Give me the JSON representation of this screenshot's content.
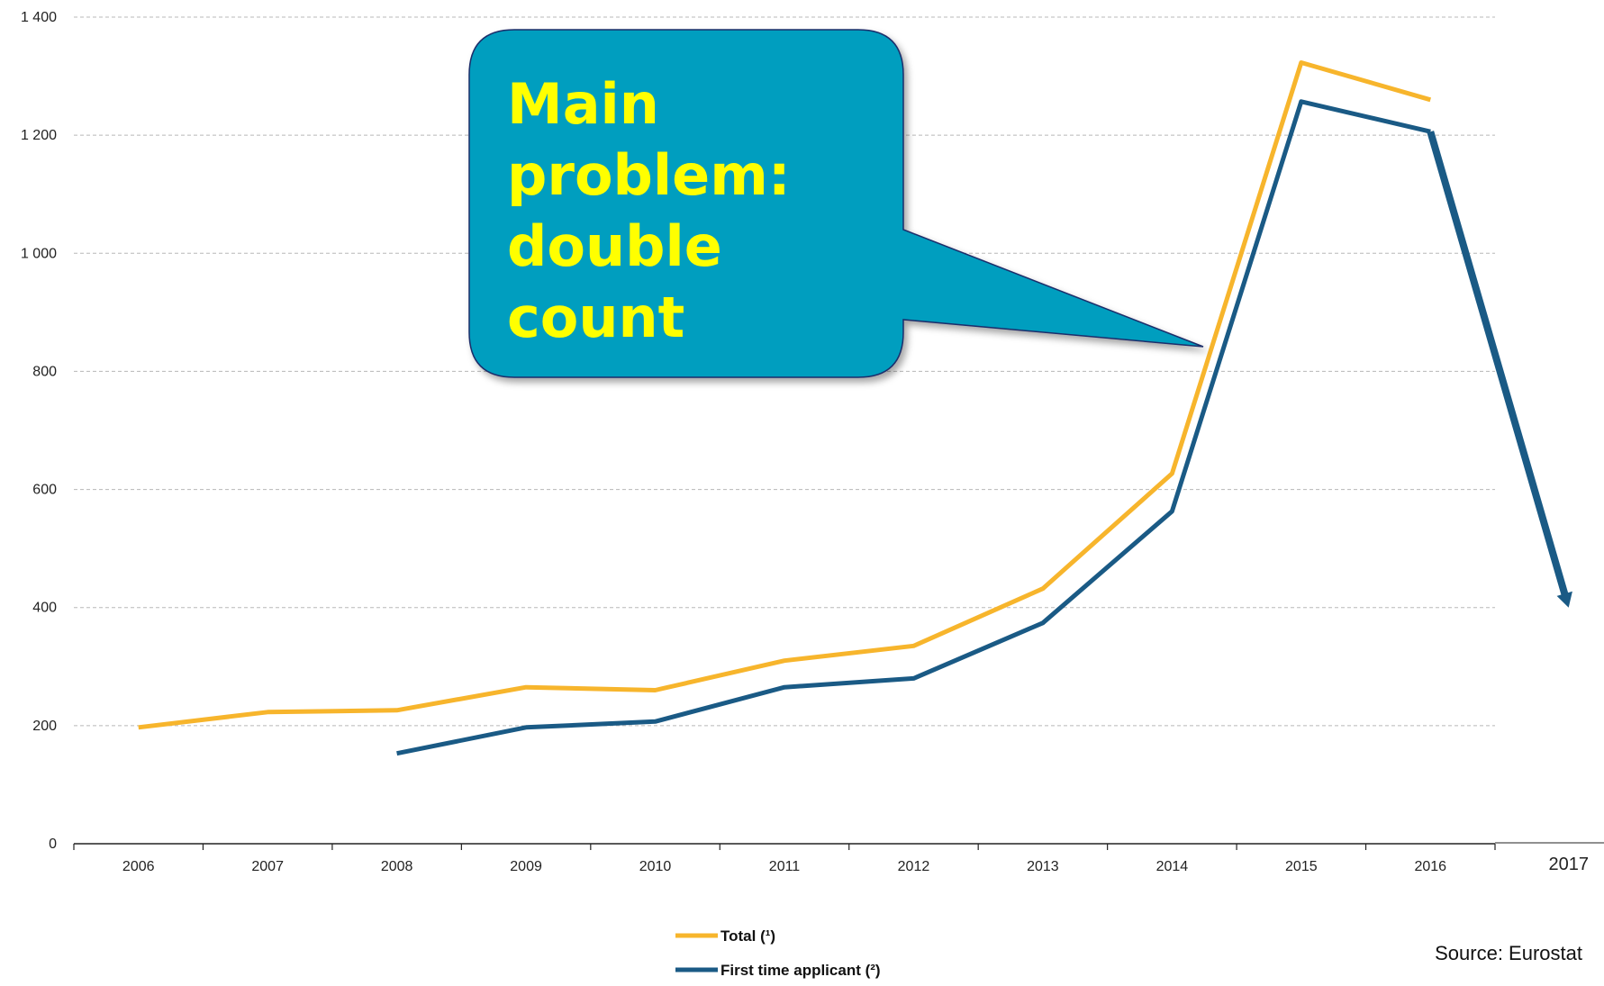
{
  "chart_data": {
    "type": "line",
    "categories": [
      "2006",
      "2007",
      "2008",
      "2009",
      "2010",
      "2011",
      "2012",
      "2013",
      "2014",
      "2015",
      "2016"
    ],
    "series": [
      {
        "name": "Total (¹)",
        "color": "#f7b52c",
        "values": [
          197,
          223,
          226,
          265,
          260,
          310,
          335,
          432,
          627,
          1323,
          1260
        ]
      },
      {
        "name": "First time applicant (²)",
        "color": "#1a5a85",
        "values": [
          null,
          null,
          153,
          197,
          207,
          265,
          280,
          374,
          563,
          1257,
          1206
        ]
      }
    ],
    "extra_category": "2017",
    "trend_arrow": {
      "from_category": "2016",
      "from_value": 1206,
      "to_category": "2017",
      "to_value": 400,
      "color": "#1a5a85"
    },
    "yticks": [
      "0",
      "200",
      "400",
      "600",
      "800",
      "1 000",
      "1 200",
      "1 400"
    ],
    "ylim": [
      0,
      1400
    ],
    "grid": true,
    "grid_style": "dashed-horizontal",
    "legend_position": "bottom-center",
    "annotation": {
      "lines": [
        "Main",
        "problem:",
        "double",
        "count"
      ],
      "text_color": "#ffff00",
      "box_color": "#009ebf",
      "border_color": "#1b2d6b"
    },
    "source": "Source: Eurostat"
  }
}
